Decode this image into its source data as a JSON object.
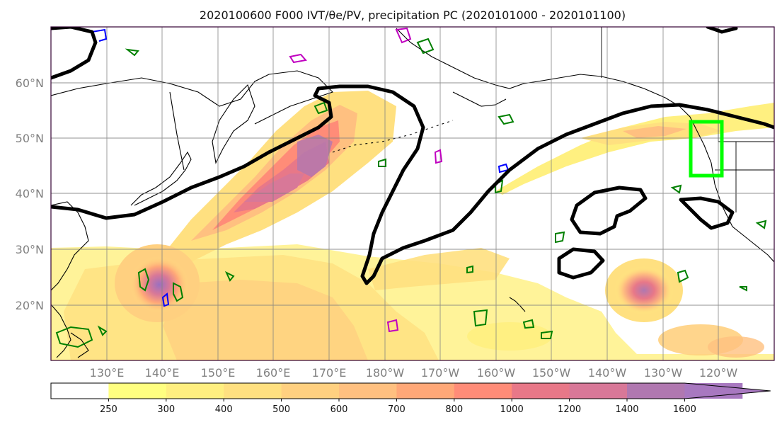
{
  "title": "2020100600 F000 IVT/θe/PV, precipitation PC (2020101000 - 2020101100)",
  "map": {
    "lat_labels": [
      "60°N",
      "50°N",
      "40°N",
      "30°N",
      "20°N"
    ],
    "lon_labels": [
      "130°E",
      "140°E",
      "150°E",
      "160°E",
      "170°E",
      "180°W",
      "170°W",
      "160°W",
      "150°W",
      "140°W",
      "130°W",
      "120°W"
    ],
    "extent": {
      "lon_min": 120,
      "lon_max": 250,
      "lat_min": 10,
      "lat_max": 70
    },
    "gridlines": true,
    "colors": {
      "theta_e_contour": "#000000",
      "pv_positive_contour": "#008000",
      "pv_negative_contour": "#0000ff",
      "pv_other_contour": "#c000c0",
      "target_box": "#00ff00",
      "coastline": "#000000",
      "gridline": "#808080"
    }
  },
  "colorbar": {
    "levels": [
      "250",
      "300",
      "400",
      "500",
      "600",
      "700",
      "800",
      "1000",
      "1200",
      "1400",
      "1600"
    ],
    "colors": [
      "#ffffff",
      "#ffff80",
      "#ffef80",
      "#ffe080",
      "#ffd080",
      "#ffc080",
      "#ffa878",
      "#ff8c78",
      "#e87888",
      "#d87898",
      "#b078b0",
      "#a878c0"
    ],
    "extend": "max"
  }
}
